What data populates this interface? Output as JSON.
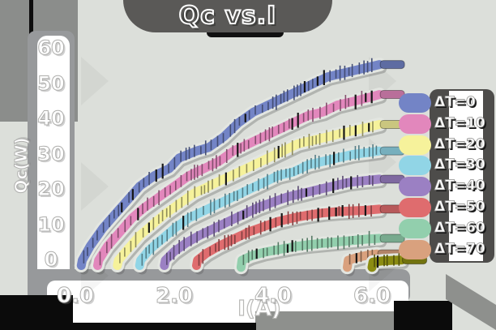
{
  "title": {
    "text": "Qc vs.I"
  },
  "axes": {
    "x": {
      "label": "I(A)",
      "ticks": [
        {
          "value": 0,
          "label": "0.0"
        },
        {
          "value": 2,
          "label": "2.0"
        },
        {
          "value": 4,
          "label": "4.0"
        },
        {
          "value": 6,
          "label": "6.0"
        }
      ]
    },
    "y": {
      "label": "Qc(W)",
      "ticks": [
        {
          "value": 0,
          "label": "0"
        },
        {
          "value": 10,
          "label": "10"
        },
        {
          "value": 20,
          "label": "20"
        },
        {
          "value": 30,
          "label": "30"
        },
        {
          "value": 40,
          "label": "40"
        },
        {
          "value": 50,
          "label": "50"
        },
        {
          "value": 60,
          "label": "60"
        }
      ]
    }
  },
  "legend": {
    "position": "right",
    "entries": [
      {
        "label": "ΔT=0",
        "color": "#7384c6"
      },
      {
        "label": "ΔT=10",
        "color": "#e287bc"
      },
      {
        "label": "ΔT=20",
        "color": "#f6f29b"
      },
      {
        "label": "ΔT=30",
        "color": "#91d5e6"
      },
      {
        "label": "ΔT=40",
        "color": "#9b80c3"
      },
      {
        "label": "ΔT=50",
        "color": "#df6c6e"
      },
      {
        "label": "ΔT=60",
        "color": "#92cfad"
      },
      {
        "label": "ΔT=70",
        "color": "#d9a17e"
      }
    ]
  },
  "chart_data": {
    "type": "line",
    "title": "Qc vs.I",
    "xlabel": "I(A)",
    "ylabel": "Qc(W)",
    "xlim": [
      0,
      6.7
    ],
    "ylim": [
      0,
      62
    ],
    "x_ticks": [
      0,
      2,
      4,
      6
    ],
    "y_ticks": [
      0,
      10,
      20,
      30,
      40,
      50,
      60
    ],
    "grid": false,
    "legend_position": "right",
    "style": "sketch-crayon",
    "series": [
      {
        "name": "ΔT=0",
        "color": "#7384c6",
        "points": [
          [
            0.12,
            -1.5
          ],
          [
            0.14,
            0
          ],
          [
            0.3,
            4
          ],
          [
            0.55,
            9
          ],
          [
            0.8,
            13
          ],
          [
            1.05,
            17
          ],
          [
            1.3,
            21
          ],
          [
            1.6,
            24
          ],
          [
            1.9,
            26
          ],
          [
            2.1,
            29
          ],
          [
            2.45,
            31
          ],
          [
            2.7,
            32
          ],
          [
            3.0,
            35
          ],
          [
            3.3,
            39
          ],
          [
            3.6,
            42
          ],
          [
            3.9,
            44
          ],
          [
            4.2,
            46
          ],
          [
            4.5,
            48
          ],
          [
            4.8,
            50
          ],
          [
            5.1,
            52
          ],
          [
            5.4,
            53
          ],
          [
            5.7,
            54
          ],
          [
            6.0,
            55
          ],
          [
            6.15,
            55.5
          ]
        ]
      },
      {
        "name": "ΔT=10",
        "color": "#e287bc",
        "points": [
          [
            0.45,
            -1.5
          ],
          [
            0.47,
            0
          ],
          [
            0.65,
            4
          ],
          [
            0.9,
            8
          ],
          [
            1.15,
            12
          ],
          [
            1.4,
            15
          ],
          [
            1.7,
            18
          ],
          [
            2.0,
            21
          ],
          [
            2.3,
            24
          ],
          [
            2.6,
            26
          ],
          [
            2.9,
            28
          ],
          [
            3.2,
            31
          ],
          [
            3.5,
            33
          ],
          [
            3.8,
            35
          ],
          [
            4.1,
            37
          ],
          [
            4.4,
            39
          ],
          [
            4.7,
            41
          ],
          [
            5.0,
            42
          ],
          [
            5.3,
            44
          ],
          [
            5.6,
            45
          ],
          [
            5.9,
            46
          ],
          [
            6.15,
            47
          ]
        ]
      },
      {
        "name": "ΔT=20",
        "color": "#f6f29b",
        "points": [
          [
            0.85,
            -1.5
          ],
          [
            0.87,
            0
          ],
          [
            1.05,
            3
          ],
          [
            1.3,
            7
          ],
          [
            1.55,
            10
          ],
          [
            1.8,
            13
          ],
          [
            2.1,
            16
          ],
          [
            2.4,
            19
          ],
          [
            2.7,
            21
          ],
          [
            3.0,
            23
          ],
          [
            3.3,
            25
          ],
          [
            3.6,
            27
          ],
          [
            3.9,
            29
          ],
          [
            4.2,
            31
          ],
          [
            4.5,
            33
          ],
          [
            4.8,
            34
          ],
          [
            5.1,
            35
          ],
          [
            5.4,
            36
          ],
          [
            5.7,
            37
          ],
          [
            6.0,
            38
          ],
          [
            6.15,
            38.5
          ]
        ]
      },
      {
        "name": "ΔT=30",
        "color": "#91d5e6",
        "points": [
          [
            1.3,
            -1.5
          ],
          [
            1.32,
            0
          ],
          [
            1.5,
            3
          ],
          [
            1.75,
            6
          ],
          [
            2.0,
            9
          ],
          [
            2.3,
            12
          ],
          [
            2.6,
            14
          ],
          [
            2.9,
            16
          ],
          [
            3.2,
            18
          ],
          [
            3.5,
            20
          ],
          [
            3.8,
            22
          ],
          [
            4.1,
            24
          ],
          [
            4.4,
            25
          ],
          [
            4.7,
            27
          ],
          [
            5.0,
            28
          ],
          [
            5.3,
            29
          ],
          [
            5.6,
            30
          ],
          [
            5.9,
            30.5
          ],
          [
            6.15,
            31
          ]
        ]
      },
      {
        "name": "ΔT=40",
        "color": "#9b80c3",
        "points": [
          [
            1.8,
            -1.5
          ],
          [
            1.82,
            0
          ],
          [
            2.0,
            2.5
          ],
          [
            2.25,
            5
          ],
          [
            2.5,
            7
          ],
          [
            2.8,
            9
          ],
          [
            3.1,
            11
          ],
          [
            3.4,
            13
          ],
          [
            3.7,
            15
          ],
          [
            4.0,
            16.5
          ],
          [
            4.3,
            18
          ],
          [
            4.6,
            19
          ],
          [
            4.9,
            20
          ],
          [
            5.2,
            21
          ],
          [
            5.5,
            22
          ],
          [
            5.8,
            22.5
          ],
          [
            6.15,
            23
          ]
        ]
      },
      {
        "name": "ΔT=50",
        "color": "#df6c6e",
        "points": [
          [
            2.45,
            -1.5
          ],
          [
            2.47,
            0
          ],
          [
            2.65,
            2
          ],
          [
            2.9,
            4
          ],
          [
            3.2,
            6
          ],
          [
            3.5,
            8
          ],
          [
            3.8,
            9.5
          ],
          [
            4.1,
            11
          ],
          [
            4.4,
            12
          ],
          [
            4.7,
            12.8
          ],
          [
            5.0,
            13.4
          ],
          [
            5.3,
            13.8
          ],
          [
            5.6,
            14
          ],
          [
            5.9,
            14.2
          ],
          [
            6.15,
            14.5
          ]
        ]
      },
      {
        "name": "ΔT=60",
        "color": "#92cfad",
        "points": [
          [
            3.35,
            -2
          ],
          [
            3.37,
            0
          ],
          [
            3.55,
            1.2
          ],
          [
            3.8,
            2.2
          ],
          [
            4.1,
            3
          ],
          [
            4.4,
            3.8
          ],
          [
            4.7,
            4.4
          ],
          [
            5.0,
            4.8
          ],
          [
            5.3,
            5.2
          ],
          [
            5.6,
            5.6
          ],
          [
            5.9,
            6
          ],
          [
            6.15,
            6.2
          ]
        ]
      },
      {
        "name": "ΔT=70",
        "color": "#d9a17e",
        "points": [
          [
            5.5,
            -2
          ],
          [
            5.52,
            0
          ],
          [
            5.7,
            0.8
          ],
          [
            5.9,
            1.4
          ],
          [
            6.1,
            1.8
          ]
        ]
      },
      {
        "name": "(unlabeled)",
        "color": "#8b8c12",
        "points": [
          [
            6.0,
            -2
          ],
          [
            6.02,
            -0.5
          ],
          [
            6.2,
            -0.2
          ],
          [
            6.45,
            0
          ],
          [
            6.6,
            0.1
          ]
        ]
      }
    ]
  },
  "colors": {
    "background": "#dcdfda",
    "frame_gray": "#97999b",
    "corner_gray": "#8b8d8b",
    "title_blob": "#5a5957",
    "black": "#0b0b0b",
    "white_strip": "#ffffff",
    "legend_blob": "#4d4c4a"
  }
}
